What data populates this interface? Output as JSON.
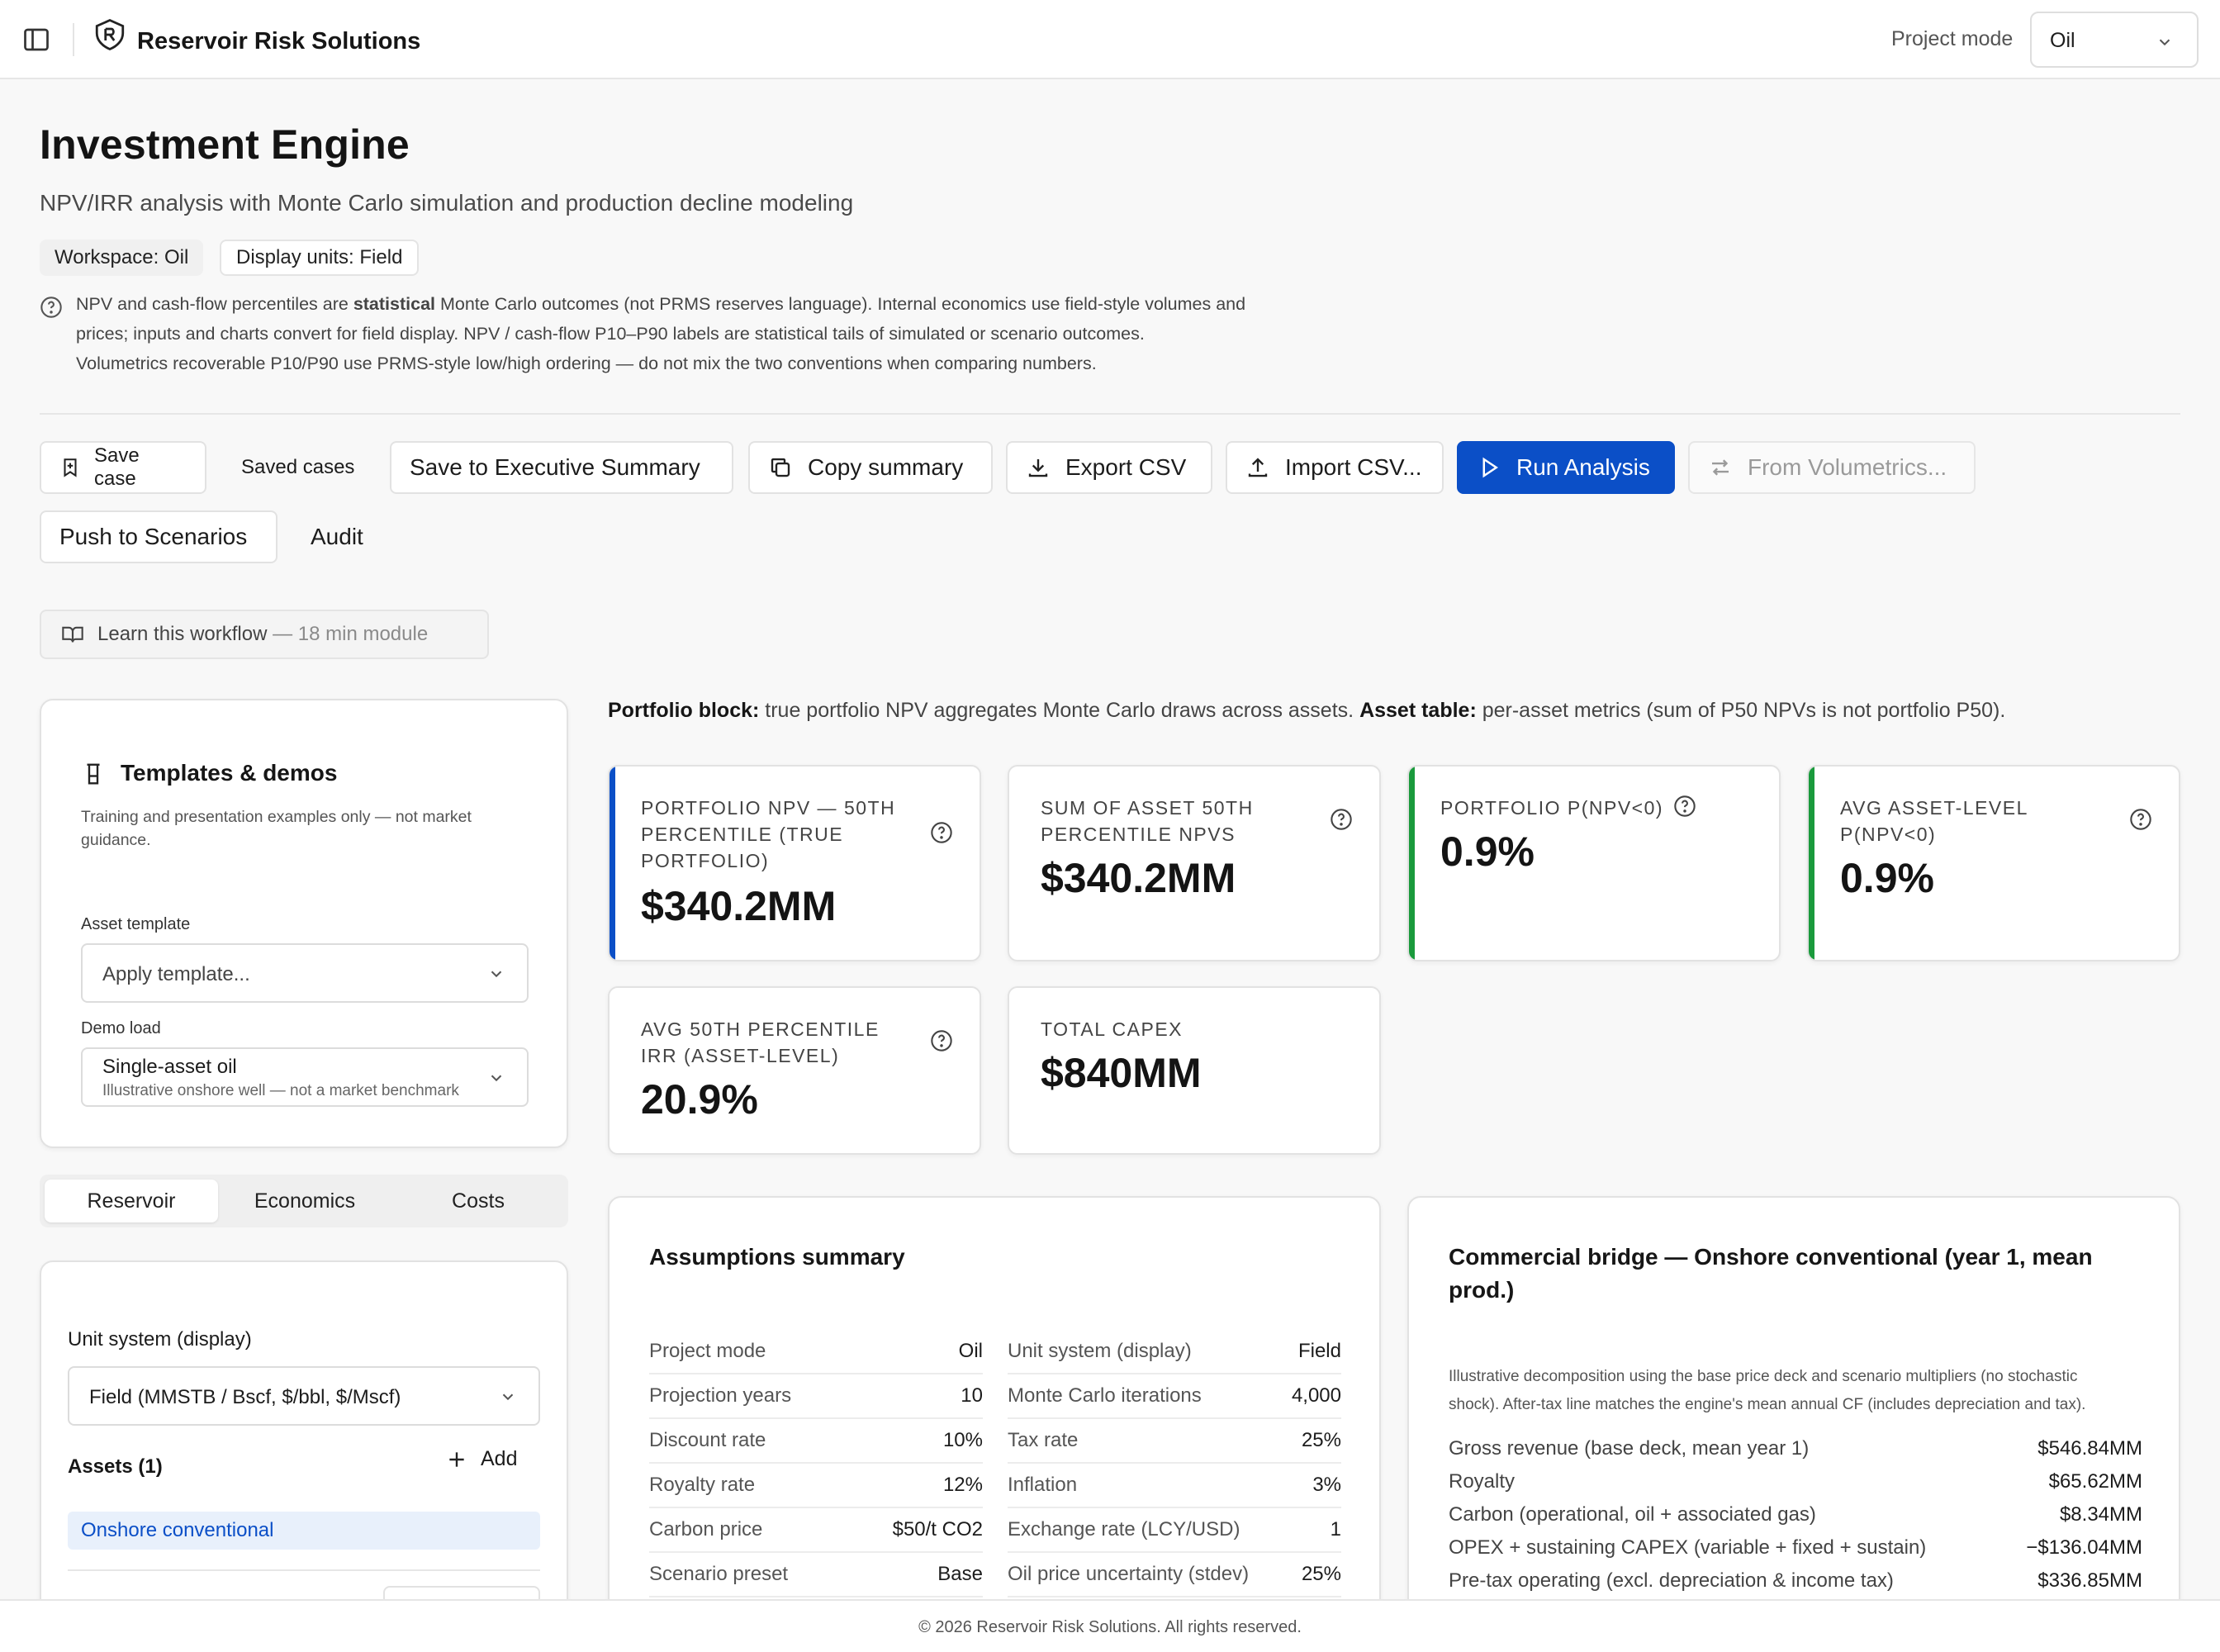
{
  "app": {
    "name": "Reservoir Risk Solutions",
    "mode_label": "Project mode",
    "mode_value": "Oil"
  },
  "header": {
    "title": "Investment Engine",
    "subtitle": "NPV/IRR analysis with Monte Carlo simulation and production decline modeling",
    "chips": [
      "Workspace: Oil",
      "Display units: Field"
    ],
    "info_lines": [
      {
        "pre": "NPV and cash-flow percentiles are ",
        "bold": "statistical",
        "post": " Monte Carlo outcomes (not PRMS reserves language). Internal economics use field-style volumes and"
      },
      {
        "pre": "prices; inputs and charts convert for field display. NPV / cash-flow P10–P90 labels are statistical tails of simulated or scenario outcomes.",
        "bold": "",
        "post": ""
      },
      {
        "pre": "Volumetrics recoverable P10/P90 use PRMS-style low/high ordering — do not mix the two conventions when comparing numbers.",
        "bold": "",
        "post": ""
      }
    ]
  },
  "toolbar": {
    "save_case": "Save case",
    "saved_cases": "Saved cases",
    "save_exec": "Save to Executive Summary",
    "copy_summary": "Copy summary",
    "export_csv": "Export CSV",
    "import_csv": "Import CSV...",
    "run_analysis": "Run Analysis",
    "from_volumetrics": "From Volumetrics...",
    "push_scenarios": "Push to Scenarios",
    "audit": "Audit"
  },
  "learn": {
    "label": "Learn this workflow",
    "muted": "— 18 min module"
  },
  "templates": {
    "title": "Templates & demos",
    "desc_lines": [
      "Training and presentation examples only — not market",
      "guidance."
    ],
    "asset_template_label": "Asset template",
    "asset_template_placeholder": "Apply template...",
    "demo_label": "Demo load",
    "demo_value": "Single-asset oil",
    "demo_sub": "Illustrative onshore well — not a market benchmark"
  },
  "tabs": [
    "Reservoir",
    "Economics",
    "Costs"
  ],
  "reservoir": {
    "unit_label": "Unit system (display)",
    "unit_value": "Field (MMSTB / Bscf, $/bbl, $/Mscf)",
    "assets_label": "Assets (1)",
    "add_label": "Add",
    "assets": [
      "Onshore conventional"
    ]
  },
  "portfolio_note": {
    "b1": "Portfolio block:",
    "t1": " true portfolio NPV aggregates Monte Carlo draws across assets. ",
    "b2": "Asset table:",
    "t2": " per-asset metrics (sum of P50 NPVs is not portfolio P50)."
  },
  "kpis": [
    {
      "label": "Portfolio NPV — 50th percentile (true portfolio)",
      "value": "$340.2MM",
      "accent": "#0b4fc7"
    },
    {
      "label": "Sum of asset 50th percentile NPVs",
      "value": "$340.2MM",
      "accent": ""
    },
    {
      "label": "Portfolio P(NPV<0)",
      "value": "0.9%",
      "accent": "#1a9a3c"
    },
    {
      "label": "Avg asset-level P(NPV<0)",
      "value": "0.9%",
      "accent": "#1a9a3c"
    },
    {
      "label": "Avg 50th percentile IRR (asset-level)",
      "value": "20.9%",
      "accent": ""
    },
    {
      "label": "Total CAPEX",
      "value": "$840MM",
      "accent": ""
    }
  ],
  "assumptions": {
    "title": "Assumptions summary",
    "left": [
      {
        "k": "Project mode",
        "v": "Oil"
      },
      {
        "k": "Projection years",
        "v": "10"
      },
      {
        "k": "Discount rate",
        "v": "10%"
      },
      {
        "k": "Royalty rate",
        "v": "12%"
      },
      {
        "k": "Carbon price",
        "v": "$50/t CO2"
      },
      {
        "k": "Scenario preset",
        "v": "Base"
      }
    ],
    "right": [
      {
        "k": "Unit system (display)",
        "v": "Field"
      },
      {
        "k": "Monte Carlo iterations",
        "v": "4,000"
      },
      {
        "k": "Tax rate",
        "v": "25%"
      },
      {
        "k": "Inflation",
        "v": "3%"
      },
      {
        "k": "Exchange rate (LCY/USD)",
        "v": "1"
      },
      {
        "k": "Oil price uncertainty (stdev)",
        "v": "25%"
      }
    ]
  },
  "bridge": {
    "title_lines": [
      "Commercial bridge — Onshore conventional (year 1, mean",
      "prod.)"
    ],
    "desc_lines": [
      "Illustrative decomposition using the base price deck and scenario multipliers (no stochastic",
      "shock). After-tax line matches the engine's mean annual CF (includes depreciation and tax)."
    ],
    "rows": [
      {
        "k": "Gross revenue (base deck, mean year 1)",
        "v": "$546.84MM"
      },
      {
        "k": "Royalty",
        "v": "$65.62MM"
      },
      {
        "k": "Carbon (operational, oil + associated gas)",
        "v": "$8.34MM"
      },
      {
        "k": "OPEX + sustaining CAPEX (variable + fixed + sustain)",
        "v": "−$136.04MM"
      },
      {
        "k": "Pre-tax operating (excl. depreciation & income tax)",
        "v": "$336.85MM"
      }
    ]
  },
  "footer": {
    "text": "© 2026 Reservoir Risk Solutions. All rights reserved."
  }
}
